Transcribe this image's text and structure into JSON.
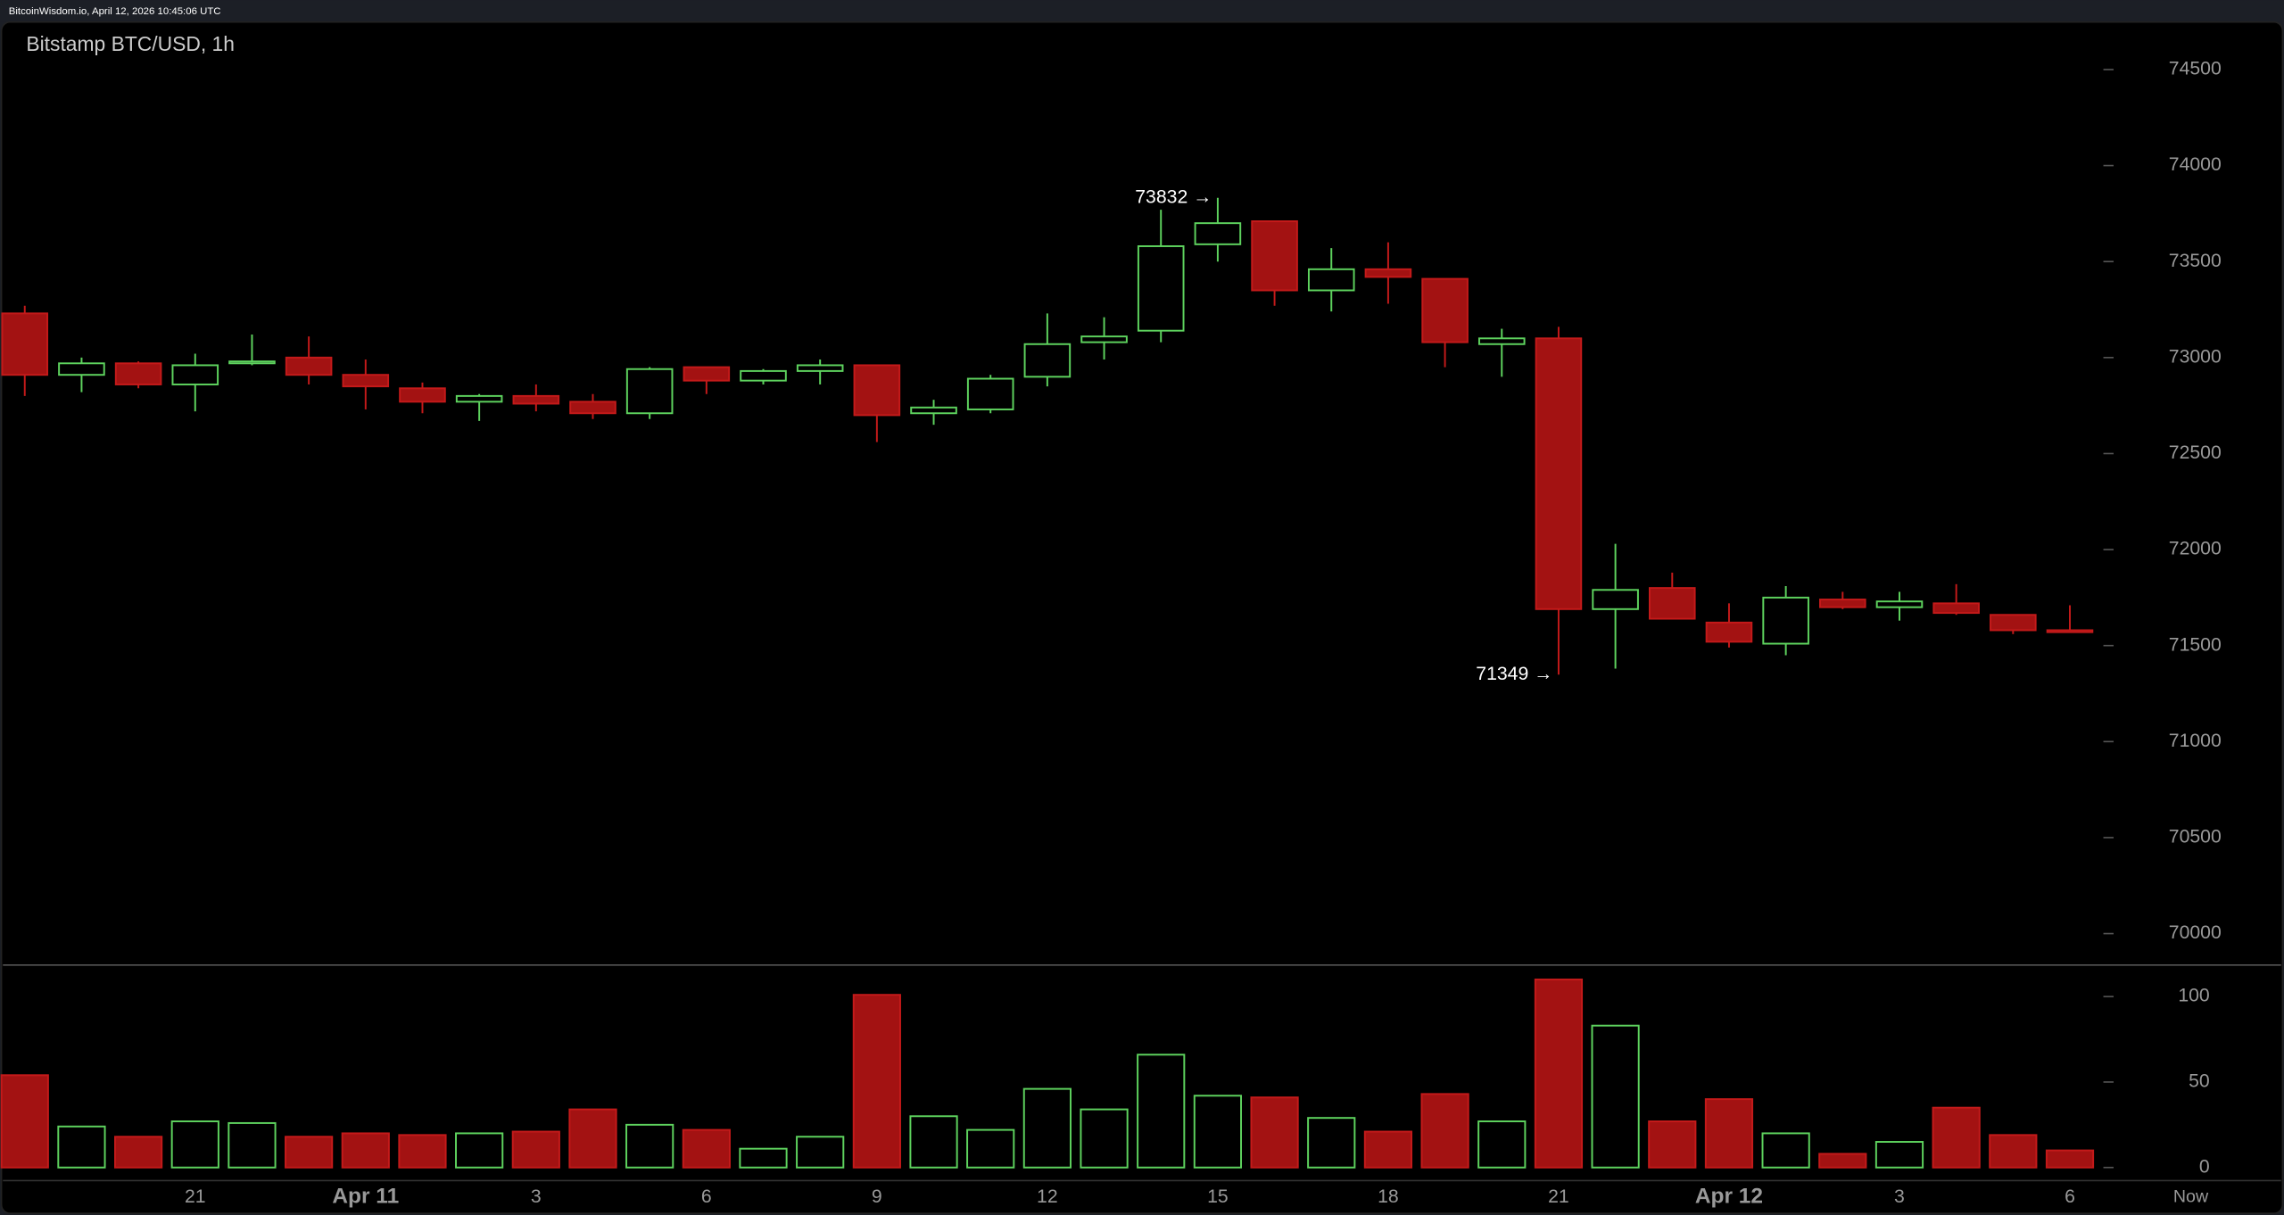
{
  "header": "BitcoinWisdom.io, April 12, 2026 10:45:06 UTC",
  "chart_data": {
    "type": "candlestick",
    "title": "Bitstamp BTC/USD, 1h",
    "categories": [
      null,
      null,
      null,
      "21",
      null,
      null,
      "Apr 11",
      null,
      null,
      "3",
      null,
      null,
      "6",
      null,
      null,
      "9",
      null,
      null,
      "12",
      null,
      null,
      "15",
      null,
      null,
      "18",
      null,
      null,
      "21",
      null,
      null,
      "Apr 12",
      null,
      null,
      "3",
      null,
      null,
      "6"
    ],
    "now_label": "Now",
    "open": [
      73230,
      72910,
      72970,
      72860,
      72970,
      73000,
      72910,
      72840,
      72770,
      72800,
      72770,
      72710,
      72950,
      72880,
      72930,
      72960,
      72710,
      72730,
      72900,
      73080,
      73140,
      73590,
      73710,
      73350,
      73460,
      73410,
      73070,
      73100,
      71690,
      71800,
      71620,
      71510,
      71740,
      71700,
      71720,
      71660,
      71580
    ],
    "high": [
      73270,
      73000,
      72980,
      73020,
      73120,
      73110,
      72990,
      72870,
      72810,
      72860,
      72810,
      72950,
      72950,
      72940,
      72990,
      72960,
      72780,
      72910,
      73230,
      73210,
      73770,
      73832,
      73710,
      73570,
      73600,
      73410,
      73150,
      73160,
      72030,
      71880,
      71720,
      71810,
      71780,
      71780,
      71820,
      71660,
      71710
    ],
    "low": [
      72800,
      72820,
      72840,
      72720,
      72960,
      72860,
      72730,
      72710,
      72670,
      72720,
      72680,
      72680,
      72810,
      72860,
      72860,
      72560,
      72650,
      72710,
      72850,
      72990,
      73080,
      73500,
      73270,
      73240,
      73280,
      72950,
      72900,
      71349,
      71380,
      71640,
      71490,
      71450,
      71690,
      71630,
      71660,
      71560,
      71570
    ],
    "close": [
      72910,
      72970,
      72860,
      72960,
      72980,
      72910,
      72850,
      72770,
      72800,
      72760,
      72710,
      72940,
      72880,
      72930,
      72960,
      72700,
      72740,
      72890,
      73070,
      73110,
      73580,
      73700,
      73350,
      73460,
      73420,
      73080,
      73100,
      71690,
      71790,
      71640,
      71520,
      71750,
      71700,
      71730,
      71670,
      71580,
      71570
    ],
    "volume": [
      54,
      24,
      18,
      27,
      26,
      18,
      20,
      19,
      20,
      21,
      34,
      25,
      22,
      11,
      18,
      101,
      30,
      22,
      46,
      34,
      66,
      42,
      41,
      29,
      21,
      43,
      27,
      110,
      83,
      27,
      40,
      20,
      8,
      15,
      35,
      19,
      10
    ],
    "annotations": [
      {
        "label": "73832 →",
        "value": 73832
      },
      {
        "label": "71349 →",
        "value": 71349
      }
    ],
    "ylim": [
      69840,
      74740
    ],
    "yticks": [
      70000,
      70500,
      71000,
      71500,
      72000,
      72500,
      73000,
      73500,
      74000,
      74500
    ],
    "volume_ylim": [
      0,
      118
    ],
    "volume_ticks": [
      0,
      50,
      100
    ],
    "up_color": "#5ed35e",
    "down_color": "#a31212"
  }
}
